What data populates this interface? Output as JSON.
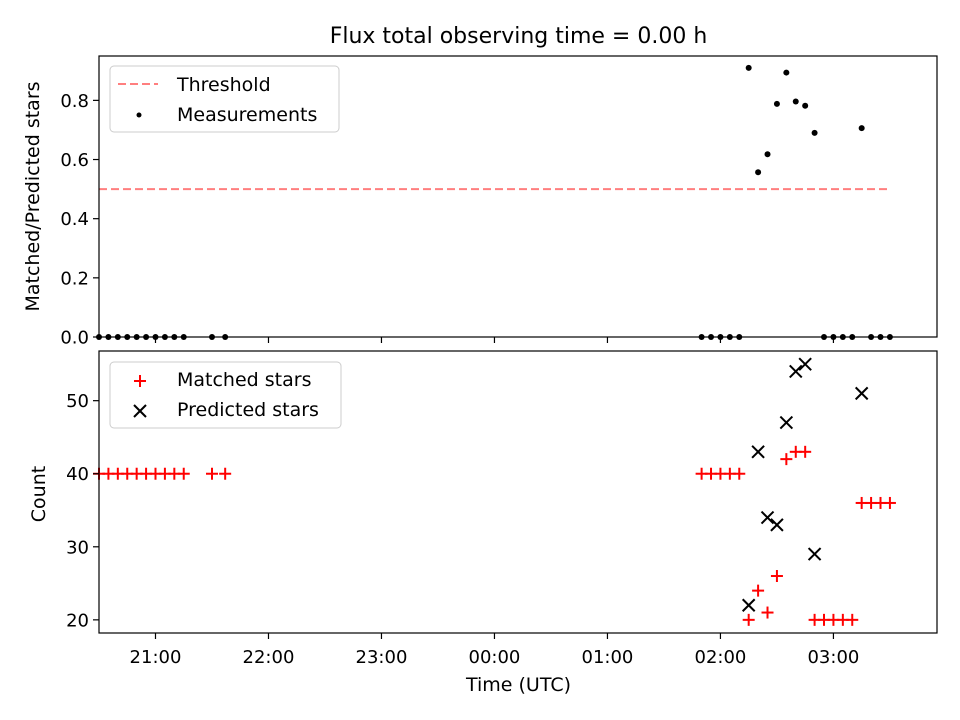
{
  "chart_data": [
    {
      "type": "scatter",
      "title": "Flux total observing time = 0.00 h",
      "xlabel": "",
      "ylabel": "Matched/Predicted stars",
      "xlim": [
        "20:30",
        "03:55"
      ],
      "ylim": [
        0,
        0.95
      ],
      "y_ticks": [
        "0.0",
        "0.2",
        "0.4",
        "0.6",
        "0.8"
      ],
      "legend_position": "top-left",
      "threshold": {
        "name": "Threshold",
        "value": 0.5,
        "x_range": [
          "20:30",
          "03:30"
        ],
        "color": "#ff7f7f"
      },
      "series": [
        {
          "name": "Measurements",
          "color": "#000000",
          "marker": "dot",
          "points": [
            [
              "20:30",
              0
            ],
            [
              "20:35",
              0
            ],
            [
              "20:40",
              0
            ],
            [
              "20:45",
              0
            ],
            [
              "20:50",
              0
            ],
            [
              "20:55",
              0
            ],
            [
              "21:00",
              0
            ],
            [
              "21:05",
              0
            ],
            [
              "21:10",
              0
            ],
            [
              "21:15",
              0
            ],
            [
              "21:30",
              0
            ],
            [
              "21:37",
              0
            ],
            [
              "01:50",
              0
            ],
            [
              "01:55",
              0
            ],
            [
              "02:00",
              0
            ],
            [
              "02:05",
              0
            ],
            [
              "02:10",
              0
            ],
            [
              "02:15",
              0.91
            ],
            [
              "02:20",
              0.557
            ],
            [
              "02:25",
              0.618
            ],
            [
              "02:30",
              0.788
            ],
            [
              "02:35",
              0.894
            ],
            [
              "02:40",
              0.796
            ],
            [
              "02:45",
              0.782
            ],
            [
              "02:50",
              0.69
            ],
            [
              "02:55",
              0
            ],
            [
              "03:00",
              0
            ],
            [
              "03:05",
              0
            ],
            [
              "03:10",
              0
            ],
            [
              "03:15",
              0.706
            ],
            [
              "03:20",
              0
            ],
            [
              "03:25",
              0
            ],
            [
              "03:30",
              0
            ]
          ]
        }
      ]
    },
    {
      "type": "scatter",
      "title": "",
      "xlabel": "Time (UTC)",
      "ylabel": "Count",
      "xlim": [
        "20:30",
        "03:55"
      ],
      "ylim": [
        18.2,
        56.8
      ],
      "x_ticks": [
        "21:00",
        "22:00",
        "23:00",
        "00:00",
        "01:00",
        "02:00",
        "03:00"
      ],
      "y_ticks": [
        "20",
        "30",
        "40",
        "50"
      ],
      "legend_position": "top-left",
      "series": [
        {
          "name": "Matched stars",
          "color": "#ff0000",
          "marker": "plus",
          "points": [
            [
              "20:30",
              40
            ],
            [
              "20:35",
              40
            ],
            [
              "20:40",
              40
            ],
            [
              "20:45",
              40
            ],
            [
              "20:50",
              40
            ],
            [
              "20:55",
              40
            ],
            [
              "21:00",
              40
            ],
            [
              "21:05",
              40
            ],
            [
              "21:10",
              40
            ],
            [
              "21:15",
              40
            ],
            [
              "21:30",
              40
            ],
            [
              "21:37",
              40
            ],
            [
              "01:50",
              40
            ],
            [
              "01:55",
              40
            ],
            [
              "02:00",
              40
            ],
            [
              "02:05",
              40
            ],
            [
              "02:10",
              40
            ],
            [
              "02:15",
              20
            ],
            [
              "02:20",
              24
            ],
            [
              "02:25",
              21
            ],
            [
              "02:30",
              26
            ],
            [
              "02:35",
              42
            ],
            [
              "02:40",
              43
            ],
            [
              "02:45",
              43
            ],
            [
              "02:50",
              20
            ],
            [
              "02:55",
              20
            ],
            [
              "03:00",
              20
            ],
            [
              "03:05",
              20
            ],
            [
              "03:10",
              20
            ],
            [
              "03:15",
              36
            ],
            [
              "03:20",
              36
            ],
            [
              "03:25",
              36
            ],
            [
              "03:30",
              36
            ]
          ]
        },
        {
          "name": "Predicted stars",
          "color": "#000000",
          "marker": "x",
          "points": [
            [
              "02:15",
              22
            ],
            [
              "02:20",
              43
            ],
            [
              "02:25",
              34
            ],
            [
              "02:30",
              33
            ],
            [
              "02:35",
              47
            ],
            [
              "02:40",
              54
            ],
            [
              "02:45",
              55
            ],
            [
              "02:50",
              29
            ],
            [
              "03:15",
              51
            ]
          ]
        }
      ]
    }
  ]
}
